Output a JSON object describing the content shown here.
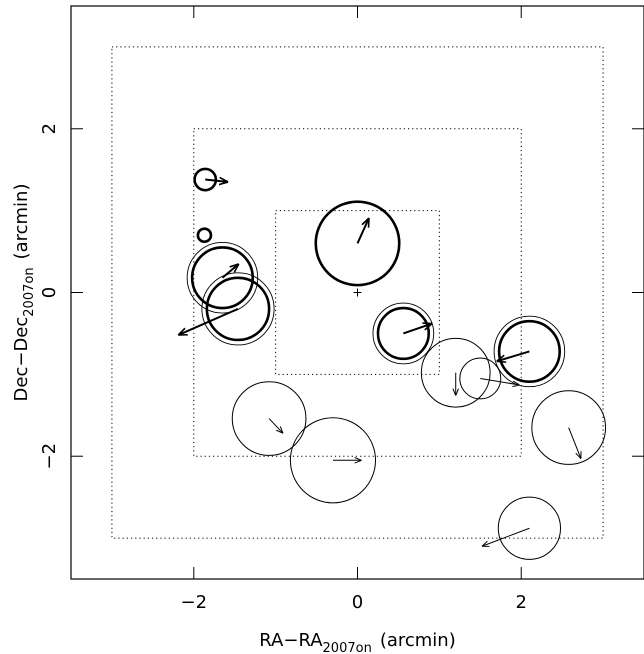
{
  "chart_data": {
    "type": "scatter",
    "xlabel_main": "RA−RA",
    "xlabel_sub": "2007on",
    "xlabel_unit": "(arcmin)",
    "ylabel_main": "Dec−Dec",
    "ylabel_sub": "2007on",
    "ylabel_unit": "(arcmin)",
    "xlim": [
      -3.5,
      3.5
    ],
    "ylim": [
      -3.5,
      3.5
    ],
    "x_ticks": [
      -2,
      0,
      2
    ],
    "y_ticks": [
      -2,
      0,
      2
    ],
    "x_tick_labels": [
      "−2",
      "0",
      "2"
    ],
    "y_tick_labels": [
      "−2",
      "0",
      "2"
    ],
    "center_marker": [
      0,
      0
    ],
    "boxes": [
      {
        "half_width": 1,
        "style": "dotted"
      },
      {
        "half_width": 2,
        "style": "dotted"
      },
      {
        "half_width": 3,
        "style": "dotted"
      }
    ],
    "circles": [
      {
        "x": -1.86,
        "y": 1.38,
        "r": 0.13,
        "weight": "thick",
        "double": false,
        "arrow": [
          0.28,
          -0.03
        ]
      },
      {
        "x": -1.87,
        "y": 0.7,
        "r": 0.08,
        "weight": "thick",
        "double": false,
        "arrow": null
      },
      {
        "x": 0.0,
        "y": 0.6,
        "r": 0.51,
        "weight": "thick",
        "double": false,
        "arrow": [
          0.14,
          0.31
        ]
      },
      {
        "x": -1.65,
        "y": 0.18,
        "r": 0.37,
        "weight": "thick",
        "double": true,
        "arrow": [
          0.2,
          0.17
        ]
      },
      {
        "x": -1.46,
        "y": -0.2,
        "r": 0.38,
        "weight": "thick",
        "double": true,
        "arrow": [
          -0.73,
          -0.32
        ]
      },
      {
        "x": 0.56,
        "y": -0.5,
        "r": 0.31,
        "weight": "thick",
        "double": true,
        "arrow": [
          0.35,
          0.12
        ]
      },
      {
        "x": 2.1,
        "y": -0.72,
        "r": 0.37,
        "weight": "thick",
        "double": true,
        "arrow": [
          -0.4,
          -0.12
        ]
      },
      {
        "x": 1.2,
        "y": -0.98,
        "r": 0.42,
        "weight": "thin",
        "double": false,
        "arrow": [
          0.0,
          -0.28
        ]
      },
      {
        "x": 1.5,
        "y": -1.05,
        "r": 0.25,
        "weight": "thin",
        "double": false,
        "arrow": [
          0.48,
          -0.08
        ]
      },
      {
        "x": -1.08,
        "y": -1.54,
        "r": 0.45,
        "weight": "thin",
        "double": false,
        "arrow": [
          0.17,
          -0.18
        ]
      },
      {
        "x": -0.3,
        "y": -2.05,
        "r": 0.52,
        "weight": "thin",
        "double": false,
        "arrow": [
          0.35,
          0.0
        ]
      },
      {
        "x": 2.58,
        "y": -1.65,
        "r": 0.45,
        "weight": "thin",
        "double": false,
        "arrow": [
          0.15,
          -0.38
        ]
      },
      {
        "x": 2.1,
        "y": -2.88,
        "r": 0.38,
        "weight": "thin",
        "double": false,
        "arrow": [
          -0.58,
          -0.22
        ]
      }
    ]
  }
}
